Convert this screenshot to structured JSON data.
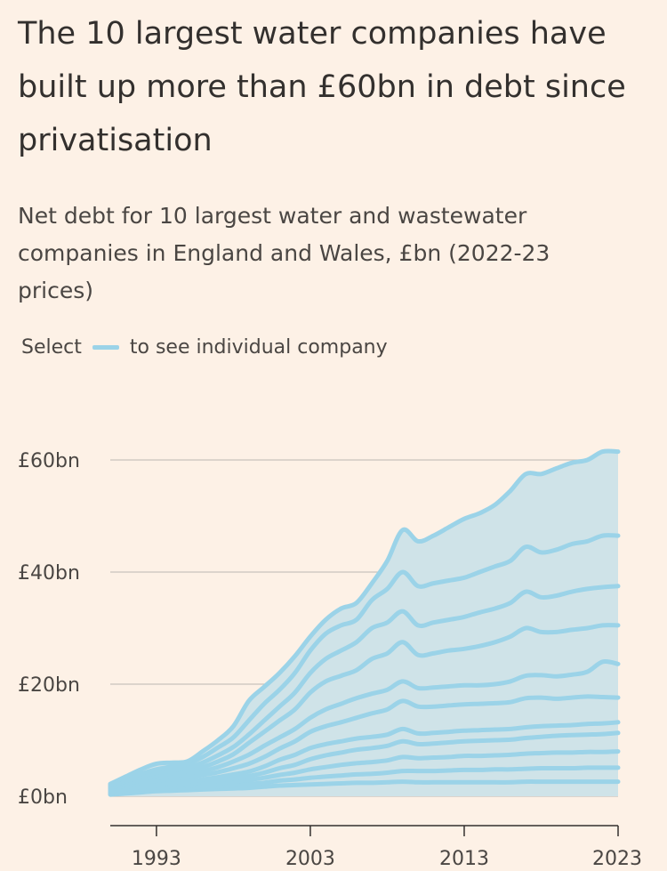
{
  "title": "The 10 largest water companies have built up more than £60bn in debt since privatisation",
  "subtitle": "Net debt for 10 largest water and wastewater companies in England and Wales, £bn (2022-23 prices)",
  "legend": {
    "prefix": "Select",
    "suffix": "to see individual company"
  },
  "colors": {
    "background": "#fdf1e6",
    "line": "#9bd3e8",
    "fill": "#cfe3e8",
    "grid": "#c9c3bd",
    "axis": "#33302e"
  },
  "chart_data": {
    "type": "area",
    "stacked": true,
    "title": "The 10 largest water companies have built up more than £60bn in debt since privatisation",
    "subtitle": "Net debt for 10 largest water and wastewater companies in England and Wales, £bn (2022-23 prices)",
    "xlabel": "",
    "ylabel": "",
    "xlim": [
      1990,
      2023
    ],
    "ylim": [
      0,
      65
    ],
    "y_ticks": [
      0,
      20,
      40,
      60
    ],
    "y_tick_labels": [
      "£0bn",
      "£20bn",
      "£40bn",
      "£60bn"
    ],
    "x_ticks": [
      1993,
      2003,
      2013,
      2023
    ],
    "x_tick_labels": [
      "1993",
      "2003",
      "2013",
      "2023"
    ],
    "grid": "horizontal",
    "x": [
      1990,
      1991,
      1992,
      1993,
      1994,
      1995,
      1996,
      1997,
      1998,
      1999,
      2000,
      2001,
      2002,
      2003,
      2004,
      2005,
      2006,
      2007,
      2008,
      2009,
      2010,
      2011,
      2012,
      2013,
      2014,
      2015,
      2016,
      2017,
      2018,
      2019,
      2020,
      2021,
      2022,
      2023
    ],
    "cumulative_lines": [
      [
        0.3,
        0.5,
        0.7,
        0.9,
        1.0,
        1.1,
        1.2,
        1.3,
        1.4,
        1.5,
        1.7,
        1.9,
        2.0,
        2.1,
        2.2,
        2.3,
        2.4,
        2.4,
        2.5,
        2.6,
        2.5,
        2.5,
        2.5,
        2.5,
        2.5,
        2.5,
        2.5,
        2.6,
        2.6,
        2.6,
        2.6,
        2.6,
        2.6,
        2.6
      ],
      [
        0.5,
        0.8,
        1.0,
        1.2,
        1.4,
        1.5,
        1.7,
        1.8,
        2.0,
        2.2,
        2.4,
        2.8,
        3.0,
        3.3,
        3.5,
        3.7,
        3.9,
        4.0,
        4.2,
        4.5,
        4.5,
        4.5,
        4.6,
        4.7,
        4.7,
        4.8,
        4.8,
        4.9,
        5.0,
        5.0,
        5.0,
        5.1,
        5.1,
        5.1
      ],
      [
        0.7,
        1.0,
        1.3,
        1.5,
        1.7,
        1.9,
        2.1,
        2.3,
        2.6,
        2.9,
        3.3,
        3.8,
        4.2,
        4.8,
        5.2,
        5.6,
        5.9,
        6.1,
        6.4,
        7.0,
        6.8,
        6.9,
        7.0,
        7.2,
        7.2,
        7.3,
        7.4,
        7.6,
        7.7,
        7.8,
        7.8,
        7.9,
        7.9,
        8.0
      ],
      [
        0.9,
        1.3,
        1.6,
        1.9,
        2.1,
        2.3,
        2.5,
        2.8,
        3.2,
        3.6,
        4.2,
        5.0,
        5.6,
        6.6,
        7.3,
        7.8,
        8.3,
        8.6,
        9.0,
        9.8,
        9.3,
        9.4,
        9.6,
        9.8,
        9.9,
        10.0,
        10.1,
        10.4,
        10.6,
        10.8,
        10.9,
        11.0,
        11.1,
        11.3
      ],
      [
        1.1,
        1.6,
        2.0,
        2.3,
        2.5,
        2.7,
        3.0,
        3.4,
        3.9,
        4.4,
        5.3,
        6.5,
        7.4,
        8.6,
        9.3,
        9.8,
        10.3,
        10.6,
        11.0,
        12.0,
        11.2,
        11.3,
        11.5,
        11.7,
        11.8,
        11.9,
        12.0,
        12.3,
        12.5,
        12.6,
        12.7,
        12.9,
        13.0,
        13.2
      ],
      [
        1.3,
        1.9,
        2.4,
        2.8,
        3.1,
        3.4,
        3.8,
        4.3,
        5.0,
        5.8,
        7.0,
        8.5,
        9.8,
        11.5,
        12.5,
        13.2,
        14.0,
        14.8,
        15.5,
        17.0,
        16.0,
        16.0,
        16.2,
        16.4,
        16.5,
        16.6,
        16.8,
        17.5,
        17.6,
        17.4,
        17.6,
        17.8,
        17.7,
        17.6
      ],
      [
        1.5,
        2.2,
        2.8,
        3.3,
        3.6,
        4.0,
        4.5,
        5.2,
        6.2,
        7.4,
        9.0,
        10.5,
        12.0,
        14.0,
        15.5,
        16.5,
        17.5,
        18.3,
        19.0,
        20.5,
        19.3,
        19.4,
        19.6,
        19.8,
        19.8,
        20.0,
        20.5,
        21.5,
        21.6,
        21.4,
        21.7,
        22.2,
        24.0,
        23.6
      ],
      [
        1.6,
        2.4,
        3.1,
        3.7,
        4.1,
        4.5,
        5.2,
        6.2,
        7.5,
        9.5,
        11.5,
        13.5,
        15.5,
        18.5,
        20.5,
        21.5,
        22.5,
        24.5,
        25.5,
        27.5,
        25.2,
        25.5,
        26.0,
        26.3,
        26.8,
        27.5,
        28.5,
        30.0,
        29.3,
        29.3,
        29.7,
        30.0,
        30.5,
        30.5
      ],
      [
        1.8,
        2.7,
        3.5,
        4.2,
        4.6,
        5.1,
        6.0,
        7.3,
        8.8,
        11.0,
        13.5,
        16.0,
        18.5,
        22.0,
        24.5,
        26.0,
        27.5,
        30.0,
        31.0,
        33.0,
        30.5,
        31.0,
        31.5,
        32.0,
        32.8,
        33.5,
        34.5,
        36.5,
        35.5,
        35.8,
        36.5,
        37.0,
        37.3,
        37.5
      ],
      [
        2.0,
        3.0,
        4.0,
        4.8,
        5.3,
        5.8,
        7.0,
        8.7,
        10.5,
        13.5,
        16.5,
        19.0,
        22.0,
        26.0,
        29.0,
        30.5,
        31.5,
        35.0,
        37.0,
        40.0,
        37.5,
        38.0,
        38.5,
        39.0,
        40.0,
        41.0,
        42.0,
        44.5,
        43.5,
        44.0,
        45.0,
        45.5,
        46.5,
        46.5
      ],
      [
        2.2,
        3.5,
        4.8,
        5.8,
        6.0,
        6.2,
        8.0,
        10.0,
        12.5,
        17.0,
        19.5,
        22.0,
        25.0,
        28.5,
        31.5,
        33.5,
        34.5,
        38.0,
        42.0,
        47.5,
        45.5,
        46.5,
        48.0,
        49.5,
        50.5,
        52.0,
        54.5,
        57.5,
        57.5,
        58.5,
        59.5,
        60.0,
        61.5,
        61.5
      ]
    ]
  }
}
